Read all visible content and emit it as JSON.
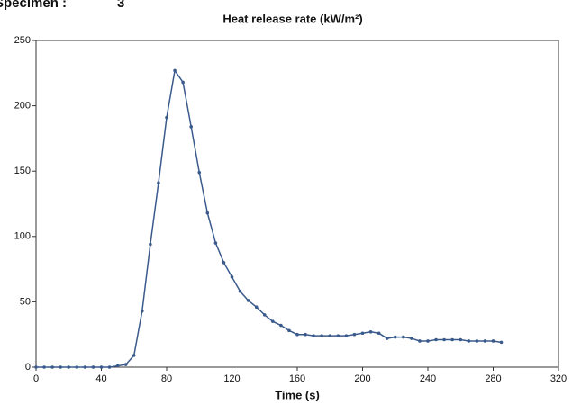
{
  "specimen_label": "Specimen :",
  "specimen_value": "3",
  "chart_data": {
    "type": "line",
    "title": "Heat release rate (kW/m²)",
    "x_label": "Time (s)",
    "x": [
      0,
      5,
      10,
      15,
      20,
      25,
      30,
      35,
      40,
      45,
      50,
      55,
      60,
      65,
      70,
      75,
      80,
      85,
      90,
      95,
      100,
      105,
      110,
      115,
      120,
      125,
      130,
      135,
      140,
      145,
      150,
      155,
      160,
      165,
      170,
      175,
      180,
      185,
      190,
      195,
      200,
      205,
      210,
      215,
      220,
      225,
      230,
      235,
      240,
      245,
      250,
      255,
      260,
      265,
      270,
      275,
      280,
      285
    ],
    "series": [
      {
        "color": "#3a5a8c",
        "values": [
          0,
          0,
          0,
          0,
          0,
          0,
          0,
          0,
          0,
          0,
          1,
          2,
          9,
          43,
          94,
          141,
          191,
          227,
          218,
          184,
          149,
          118,
          95,
          80,
          69,
          58,
          51,
          46,
          40,
          35,
          32,
          28,
          25,
          25,
          24,
          24,
          24,
          24,
          24,
          25,
          26,
          27,
          26,
          22,
          23,
          23,
          22,
          20,
          20,
          21,
          21,
          21,
          21,
          20,
          20,
          20,
          20,
          19
        ]
      }
    ],
    "xlim": [
      0,
      320
    ],
    "xticks": [
      0,
      40,
      80,
      120,
      160,
      200,
      240,
      280,
      320
    ],
    "ylim": [
      0,
      250
    ],
    "yticks": [
      0,
      50,
      100,
      150,
      200,
      250
    ]
  }
}
